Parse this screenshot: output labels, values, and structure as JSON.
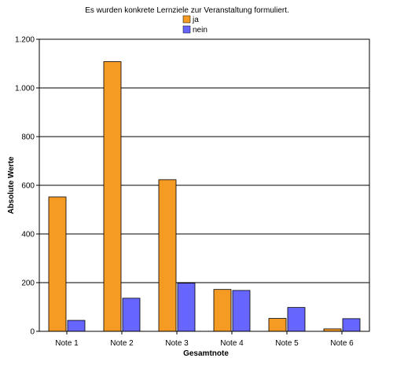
{
  "chart_data": {
    "type": "bar",
    "title": "Es wurden konkrete Lernziele zur Veranstaltung  formuliert.",
    "xlabel": "Gesamtnote",
    "ylabel": "Absolute Werte",
    "categories": [
      "Note 1",
      "Note 2",
      "Note 3",
      "Note 4",
      "Note 5",
      "Note 6"
    ],
    "series": [
      {
        "name": "ja",
        "color": "#F59A23",
        "values": [
          552,
          1108,
          623,
          172,
          53,
          10
        ]
      },
      {
        "name": "nein",
        "color": "#6666FF",
        "values": [
          45,
          136,
          198,
          168,
          98,
          52
        ]
      }
    ],
    "yticks": [
      0,
      200,
      400,
      600,
      800,
      1000,
      1200
    ],
    "ytick_labels": [
      "0",
      "200",
      "400",
      "600",
      "800",
      "1.000",
      "1.200"
    ],
    "ylim": [
      0,
      1200
    ],
    "grid": true,
    "legend_position": "top-center"
  }
}
